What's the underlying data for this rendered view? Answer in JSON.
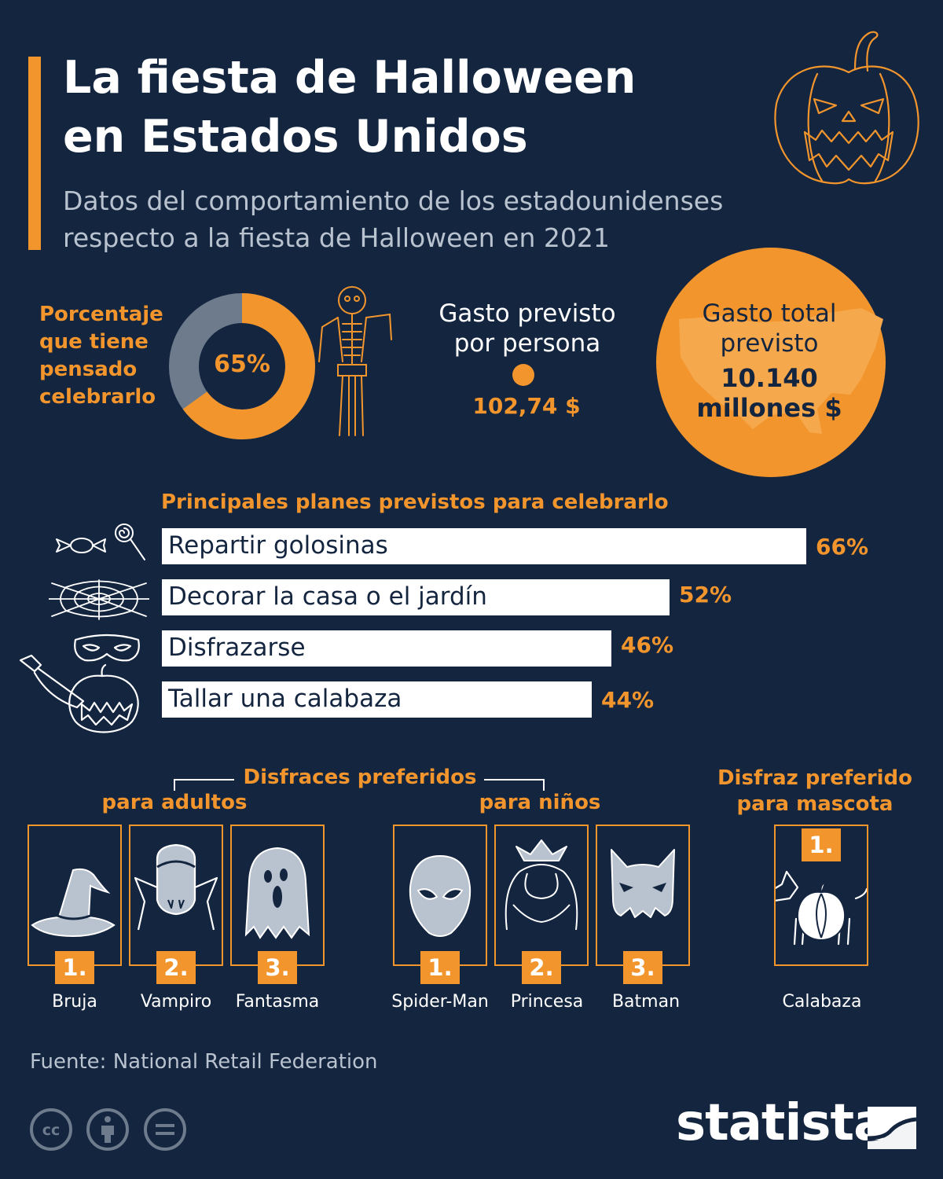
{
  "header": {
    "title_line1": "La fiesta de Halloween",
    "title_line2": "en Estados Unidos",
    "subtitle_line1": "Datos del comportamiento de los estadounidenses",
    "subtitle_line2": "respecto a la fiesta de Halloween en 2021"
  },
  "stats": {
    "celebrate_label_lines": [
      "Porcentaje",
      "que tiene",
      "pensado",
      "celebrarlo"
    ],
    "celebrate_value": "65%",
    "celebrate_fraction": 0.65,
    "per_person_title_lines": [
      "Gasto previsto",
      "por persona"
    ],
    "per_person_value": "102,74 $",
    "total_title_lines": [
      "Gasto total",
      "previsto"
    ],
    "total_value_lines": [
      "10.140",
      "millones $"
    ]
  },
  "chart_data": {
    "type": "bar",
    "title": "Principales planes previstos para celebrarlo",
    "categories": [
      "Repartir golosinas",
      "Decorar la casa o el jardín",
      "Disfrazarse",
      "Tallar una calabaza"
    ],
    "values": [
      66,
      52,
      46,
      44
    ],
    "value_labels": [
      "66%",
      "52%",
      "46%",
      "44%"
    ],
    "unit": "%",
    "xlim": [
      0,
      66
    ],
    "orientation": "horizontal"
  },
  "costumes": {
    "section_title": "Disfraces preferidos",
    "adults_label": "para adultos",
    "kids_label": "para niños",
    "pet_label_lines": [
      "Disfraz preferido",
      "para mascota"
    ],
    "adults": [
      {
        "rank": "1.",
        "name": "Bruja",
        "icon": "witch-hat-icon"
      },
      {
        "rank": "2.",
        "name": "Vampiro",
        "icon": "vampire-icon"
      },
      {
        "rank": "3.",
        "name": "Fantasma",
        "icon": "ghost-icon"
      }
    ],
    "kids": [
      {
        "rank": "1.",
        "name": "Spider-Man",
        "icon": "spiderman-mask-icon"
      },
      {
        "rank": "2.",
        "name": "Princesa",
        "icon": "princess-crown-icon"
      },
      {
        "rank": "3.",
        "name": "Batman",
        "icon": "batman-mask-icon"
      }
    ],
    "pet": {
      "rank": "1.",
      "name": "Calabaza",
      "icon": "dog-pumpkin-icon"
    }
  },
  "footer": {
    "source": "Fuente: National Retail Federation",
    "brand": "statista"
  },
  "colors": {
    "background": "#14253f",
    "accent": "#f2952d",
    "gray": "#6e7b8d",
    "subtitle": "#b9c2cf"
  }
}
